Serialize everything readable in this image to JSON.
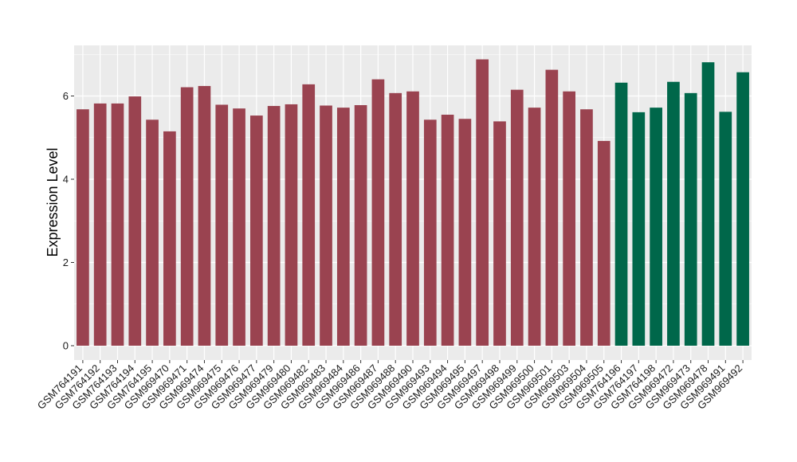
{
  "chart_data": {
    "type": "bar",
    "xlabel": "",
    "ylabel": "Expression Level",
    "ylim": [
      0,
      7.2
    ],
    "yticks": [
      0,
      2,
      4,
      6
    ],
    "grid": true,
    "legend": "none",
    "panel_background": "#ebebeb",
    "gridline_color": "#ffffff",
    "group_colors": {
      "group1": "#9a4350",
      "group2": "#00674a"
    },
    "categories": [
      "GSM764191",
      "GSM764192",
      "GSM764193",
      "GSM764194",
      "GSM764195",
      "GSM969470",
      "GSM969471",
      "GSM969474",
      "GSM969475",
      "GSM969476",
      "GSM969477",
      "GSM969479",
      "GSM969480",
      "GSM969482",
      "GSM969483",
      "GSM969484",
      "GSM969486",
      "GSM969487",
      "GSM969488",
      "GSM969490",
      "GSM969493",
      "GSM969494",
      "GSM969495",
      "GSM969497",
      "GSM969498",
      "GSM969499",
      "GSM969500",
      "GSM969501",
      "GSM969503",
      "GSM969504",
      "GSM969505",
      "GSM764196",
      "GSM764197",
      "GSM764198",
      "GSM969472",
      "GSM969473",
      "GSM969478",
      "GSM969491",
      "GSM969492"
    ],
    "values": [
      5.68,
      5.82,
      5.82,
      5.99,
      5.43,
      5.15,
      6.21,
      6.24,
      5.79,
      5.7,
      5.53,
      5.76,
      5.8,
      6.28,
      5.77,
      5.72,
      5.78,
      6.4,
      6.07,
      6.11,
      5.43,
      5.55,
      5.45,
      6.88,
      5.39,
      6.15,
      5.72,
      6.63,
      6.11,
      5.68,
      4.92,
      6.32,
      5.61,
      5.72,
      6.34,
      6.07,
      6.81,
      5.62,
      6.57
    ],
    "groups": [
      "group1",
      "group1",
      "group1",
      "group1",
      "group1",
      "group1",
      "group1",
      "group1",
      "group1",
      "group1",
      "group1",
      "group1",
      "group1",
      "group1",
      "group1",
      "group1",
      "group1",
      "group1",
      "group1",
      "group1",
      "group1",
      "group1",
      "group1",
      "group1",
      "group1",
      "group1",
      "group1",
      "group1",
      "group1",
      "group1",
      "group1",
      "group2",
      "group2",
      "group2",
      "group2",
      "group2",
      "group2",
      "group2",
      "group2"
    ]
  }
}
